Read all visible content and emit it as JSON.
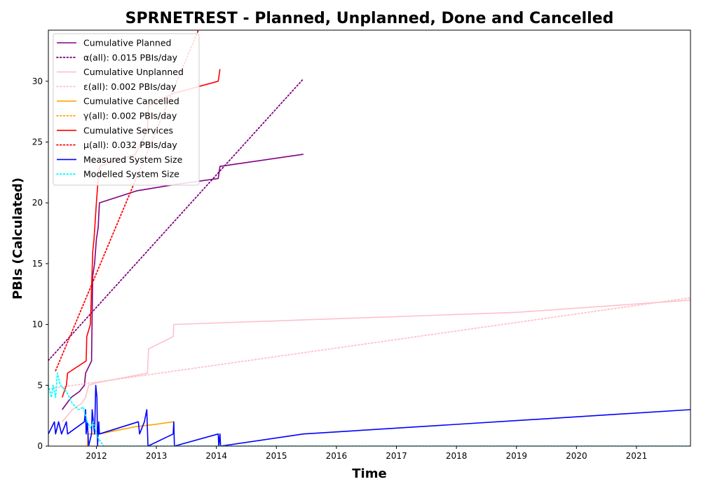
{
  "chart_data": {
    "type": "line",
    "title": "SPRNETREST - Planned, Unplanned, Done  and Cancelled",
    "xlabel": "Time",
    "ylabel": "PBIs (Calculated)",
    "xlim": [
      2011.2,
      2021.9
    ],
    "ylim": [
      0,
      34.2
    ],
    "x_ticks": [
      2012,
      2013,
      2014,
      2015,
      2016,
      2017,
      2018,
      2019,
      2020,
      2021
    ],
    "y_ticks": [
      0,
      5,
      10,
      15,
      20,
      25,
      30
    ],
    "grid": false,
    "legend_position": "top-left",
    "series": [
      {
        "name": "Cumulative Planned",
        "color": "#800080",
        "style": "solid",
        "points": [
          [
            2011.43,
            3
          ],
          [
            2011.58,
            4
          ],
          [
            2011.72,
            4.5
          ],
          [
            2011.8,
            5
          ],
          [
            2011.82,
            6
          ],
          [
            2011.92,
            7
          ],
          [
            2011.93,
            11
          ],
          [
            2011.94,
            14
          ],
          [
            2011.97,
            15
          ],
          [
            2012.0,
            17
          ],
          [
            2012.03,
            18
          ],
          [
            2012.05,
            20
          ],
          [
            2012.68,
            21
          ],
          [
            2013.3,
            21.5
          ],
          [
            2014.03,
            22
          ],
          [
            2014.06,
            23
          ],
          [
            2015.45,
            24
          ]
        ]
      },
      {
        "name": "α(all): 0.015 PBIs/day",
        "color": "#800080",
        "style": "dotted",
        "points": [
          [
            2011.2,
            7.05
          ],
          [
            2015.45,
            30.2
          ]
        ]
      },
      {
        "name": "Cumulative Unplanned",
        "color": "#ffc0cb",
        "style": "solid",
        "points": [
          [
            2011.43,
            2
          ],
          [
            2011.6,
            3
          ],
          [
            2011.75,
            3.5
          ],
          [
            2011.82,
            4
          ],
          [
            2011.87,
            5
          ],
          [
            2012.0,
            5.2
          ],
          [
            2012.85,
            6
          ],
          [
            2012.87,
            8
          ],
          [
            2013.28,
            9
          ],
          [
            2013.29,
            10
          ],
          [
            2019.0,
            11
          ],
          [
            2021.9,
            12
          ]
        ]
      },
      {
        "name": "ε(all): 0.002 PBIs/day",
        "color": "#ffc0cb",
        "style": "dotted",
        "points": [
          [
            2011.2,
            4.7
          ],
          [
            2021.9,
            12.2
          ]
        ]
      },
      {
        "name": "Cumulative Cancelled",
        "color": "#ffa500",
        "style": "solid",
        "points": [
          [
            2011.85,
            0
          ],
          [
            2011.86,
            1
          ],
          [
            2012.05,
            1
          ],
          [
            2012.25,
            1.2
          ],
          [
            2012.65,
            1.6
          ],
          [
            2013.0,
            1.8
          ],
          [
            2013.28,
            2
          ]
        ]
      },
      {
        "name": "γ(all): 0.002 PBIs/day",
        "color": "#ffa500",
        "style": "dotted",
        "points": []
      },
      {
        "name": "Cumulative Services",
        "color": "#ff0000",
        "style": "solid",
        "points": [
          [
            2011.43,
            4
          ],
          [
            2011.5,
            5
          ],
          [
            2011.52,
            6
          ],
          [
            2011.83,
            7
          ],
          [
            2011.84,
            9
          ],
          [
            2011.9,
            10
          ],
          [
            2011.94,
            16
          ],
          [
            2011.96,
            17
          ],
          [
            2012.0,
            20
          ],
          [
            2012.03,
            22
          ],
          [
            2012.05,
            23
          ],
          [
            2012.65,
            24
          ],
          [
            2012.85,
            26
          ],
          [
            2012.87,
            28
          ],
          [
            2013.28,
            29
          ],
          [
            2014.03,
            30
          ],
          [
            2014.06,
            31
          ]
        ]
      },
      {
        "name": "μ(all): 0.032 PBIs/day",
        "color": "#ff0000",
        "style": "dotted",
        "points": [
          [
            2011.32,
            6.2
          ],
          [
            2013.7,
            34.2
          ]
        ]
      },
      {
        "name": "Measured System Size",
        "color": "#0000ff",
        "style": "solid",
        "points": [
          [
            2011.2,
            1
          ],
          [
            2011.3,
            2
          ],
          [
            2011.32,
            1
          ],
          [
            2011.37,
            2
          ],
          [
            2011.42,
            1
          ],
          [
            2011.5,
            2
          ],
          [
            2011.52,
            1
          ],
          [
            2011.8,
            2
          ],
          [
            2011.82,
            3
          ],
          [
            2011.83,
            1
          ],
          [
            2011.85,
            2
          ],
          [
            2011.87,
            0
          ],
          [
            2011.92,
            1
          ],
          [
            2011.93,
            3
          ],
          [
            2011.95,
            2
          ],
          [
            2011.97,
            1
          ],
          [
            2011.99,
            5
          ],
          [
            2012.01,
            4
          ],
          [
            2012.02,
            0
          ],
          [
            2012.04,
            2
          ],
          [
            2012.05,
            1
          ],
          [
            2012.7,
            2
          ],
          [
            2012.72,
            1
          ],
          [
            2012.8,
            2
          ],
          [
            2012.84,
            3
          ],
          [
            2012.86,
            0
          ],
          [
            2013.28,
            1
          ],
          [
            2013.29,
            2
          ],
          [
            2013.3,
            0
          ],
          [
            2014.03,
            1
          ],
          [
            2014.04,
            0
          ],
          [
            2014.06,
            1
          ],
          [
            2014.07,
            0
          ],
          [
            2015.45,
            1
          ],
          [
            2021.9,
            3
          ]
        ]
      },
      {
        "name": "Modelled System Size",
        "color": "#00ffff",
        "style": "dotted",
        "points": [
          [
            2011.2,
            5
          ],
          [
            2011.25,
            4
          ],
          [
            2011.28,
            5
          ],
          [
            2011.32,
            4
          ],
          [
            2011.35,
            6
          ],
          [
            2011.4,
            5
          ],
          [
            2011.5,
            4.5
          ],
          [
            2011.6,
            3.5
          ],
          [
            2011.7,
            3
          ],
          [
            2011.78,
            3.2
          ],
          [
            2011.85,
            2
          ],
          [
            2011.9,
            1.5
          ],
          [
            2011.95,
            2
          ],
          [
            2012.0,
            1
          ],
          [
            2012.05,
            0.5
          ],
          [
            2012.12,
            0
          ],
          [
            2021.9,
            0
          ]
        ]
      }
    ]
  }
}
